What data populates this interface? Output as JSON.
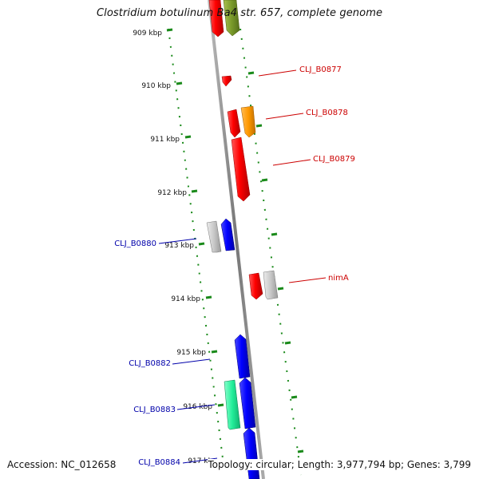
{
  "title": "Clostridium botulinum Ba4 str. 657, complete genome",
  "footer": {
    "accession": "Accession: NC_012658",
    "topology": "Topology: circular; Length: 3,977,794 bp; Genes: 3,799"
  },
  "colors": {
    "backbone": "#8a8a8a",
    "ticks": "#1a8a1a",
    "gene_red": "#ff0000",
    "gene_blue": "#0000ff",
    "gene_orange": "#ff9900",
    "gene_olive": "#7a9a2a",
    "gene_green": "#22ee99",
    "gene_gray": "#c8c8c8",
    "label_red": "#cc0000",
    "label_blue": "#0000aa"
  },
  "scale_labels": [
    "909 kbp",
    "910 kbp",
    "911 kbp",
    "912 kbp",
    "913 kbp",
    "914 kbp",
    "915 kbp",
    "916 kbp",
    "917 kbp"
  ],
  "gene_labels": {
    "right": [
      "CLJ_B0877",
      "CLJ_B0878",
      "CLJ_B0879",
      "nimA"
    ],
    "left": [
      "CLJ_B0880",
      "CLJ_B0882",
      "CLJ_B0883",
      "CLJ_B0884"
    ]
  }
}
